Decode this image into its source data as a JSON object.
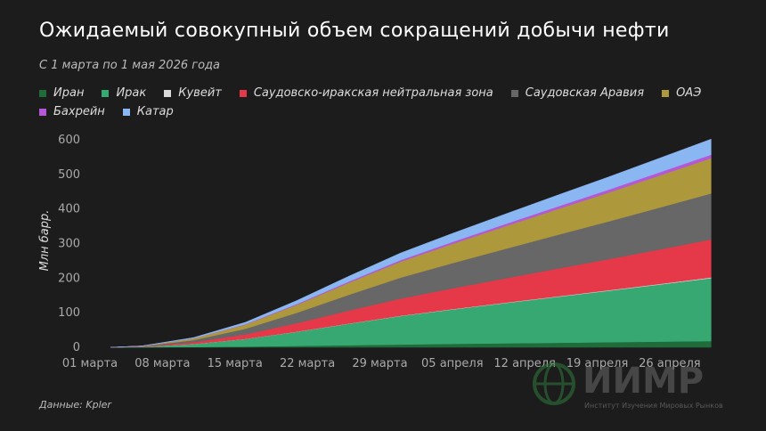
{
  "chart_data": {
    "type": "stacked_area",
    "title": "Ожидаемый совокупный объем сокращений добычи нефти",
    "subtitle": "С 1 марта по 1 мая 2026 года",
    "y_label": "Млн барр.",
    "source": "Данные: Kpler",
    "logo": {
      "name": "ИИМР",
      "caption": "Институт Изучения Мировых Рынков"
    },
    "legend": "top",
    "grid": false,
    "x": [
      2,
      5,
      10,
      15,
      20,
      25,
      30,
      35,
      40,
      45,
      50,
      55,
      60
    ],
    "xlim": [
      0,
      61
    ],
    "xticks": [
      {
        "value": 0,
        "label": "01 марта"
      },
      {
        "value": 7,
        "label": "08 марта"
      },
      {
        "value": 14,
        "label": "15 марта"
      },
      {
        "value": 21,
        "label": "22 марта"
      },
      {
        "value": 28,
        "label": "29 марта"
      },
      {
        "value": 35,
        "label": "05 апреля"
      },
      {
        "value": 42,
        "label": "12 апреля"
      },
      {
        "value": 49,
        "label": "19 апреля"
      },
      {
        "value": 56,
        "label": "26 апреля"
      }
    ],
    "ylim": [
      0,
      600
    ],
    "yticks": [
      0,
      100,
      200,
      300,
      400,
      500,
      600
    ],
    "series": [
      {
        "name": "Иран",
        "color": "#1f6b3a",
        "values": [
          0,
          0.1,
          0.8,
          2.2,
          4,
          6,
          8,
          10,
          11.5,
          13,
          14.7,
          16.4,
          18
        ]
      },
      {
        "name": "Ирак",
        "color": "#38a873",
        "values": [
          0,
          1.2,
          8.5,
          21.8,
          40.9,
          62.1,
          82.4,
          99.4,
          116,
          132.4,
          148.5,
          165.1,
          182
        ]
      },
      {
        "name": "Кувейт",
        "color": "#d9d9d9",
        "values": [
          0,
          0,
          0.1,
          0.2,
          0.4,
          0.6,
          0.8,
          1,
          1.1,
          1.3,
          1.5,
          1.6,
          2
        ]
      },
      {
        "name": "Саудовско-иракская нейтральная зона",
        "color": "#e5394a",
        "values": [
          0,
          0.7,
          5.1,
          13.2,
          24.7,
          37.5,
          49.8,
          60,
          70.1,
          80,
          89.7,
          99.7,
          110
        ]
      },
      {
        "name": "Саудовская Аравия",
        "color": "#676767",
        "values": [
          0,
          0.9,
          6.2,
          16,
          30,
          45.5,
          60.4,
          72.8,
          85,
          97,
          108.8,
          121,
          133
        ]
      },
      {
        "name": "ОАЭ",
        "color": "#ae983c",
        "values": [
          0,
          0.7,
          4.8,
          12.2,
          23,
          34.9,
          46.2,
          55.8,
          65.1,
          74.3,
          83.3,
          92.7,
          102
        ]
      },
      {
        "name": "Бахрейн",
        "color": "#b657d8",
        "values": [
          0,
          0.1,
          0.5,
          1.2,
          2.3,
          3.5,
          4.6,
          5.6,
          6.5,
          7.4,
          8.3,
          9.3,
          10
        ]
      },
      {
        "name": "Катар",
        "color": "#8ab6f2",
        "values": [
          0,
          0.3,
          2.1,
          5.4,
          10.1,
          15.4,
          20.4,
          24.6,
          28.7,
          32.8,
          36.8,
          40.9,
          45
        ]
      }
    ]
  }
}
